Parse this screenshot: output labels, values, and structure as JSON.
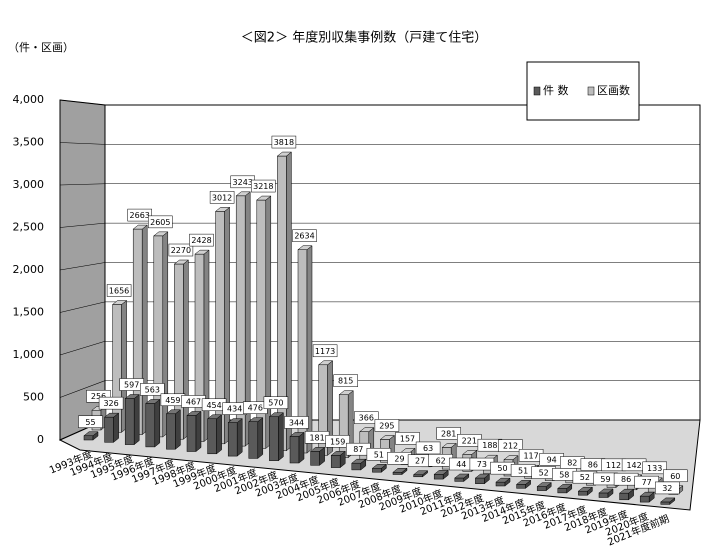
{
  "chart_data": {
    "type": "bar3d",
    "title": "＜図2＞ 年度別収集事例数（戸建て住宅）",
    "y_label": "（件・区画）",
    "categories": [
      "1993年度",
      "1994年度",
      "1995年度",
      "1996年度",
      "1997年度",
      "1998年度",
      "1999年度",
      "2000年度",
      "2001年度",
      "2002年度",
      "2003年度",
      "2004年度",
      "2005年度",
      "2006年度",
      "2007年度",
      "2008年度",
      "2009年度",
      "2010年度",
      "2011年度",
      "2012年度",
      "2013年度",
      "2014年度",
      "2015年度",
      "2016年度",
      "2017年度",
      "2018年度",
      "2019年度",
      "2020年度",
      "2021年度前期"
    ],
    "series": [
      {
        "name": "件 数",
        "color": "#5a5a5a",
        "values": [
          55,
          326,
          597,
          563,
          459,
          467,
          454,
          434,
          476,
          570,
          344,
          181,
          159,
          87,
          51,
          29,
          27,
          62,
          44,
          73,
          50,
          51,
          52,
          58,
          52,
          59,
          86,
          77,
          32
        ]
      },
      {
        "name": "区画数",
        "color": "#bdbdbd",
        "values": [
          256,
          1656,
          2663,
          2605,
          2270,
          2428,
          3012,
          3243,
          3218,
          3818,
          2634,
          1173,
          815,
          366,
          295,
          157,
          63,
          281,
          221,
          188,
          212,
          117,
          94,
          82,
          86,
          112,
          142,
          133,
          60
        ]
      }
    ],
    "ylim": [
      0,
      4000
    ],
    "yticks": [
      0,
      {
        "value": 500,
        "label": "500"
      },
      {
        "value": 1000,
        "label": "1,000"
      },
      {
        "value": 1500,
        "label": "1,500"
      },
      {
        "value": 2000,
        "label": "2,000"
      },
      {
        "value": 2500,
        "label": "2,500"
      },
      {
        "value": 3000,
        "label": "3,000"
      },
      {
        "value": 3500,
        "label": "3,500"
      },
      {
        "value": 4000,
        "label": "4,000"
      }
    ],
    "grid": true,
    "legend": "top-right"
  }
}
